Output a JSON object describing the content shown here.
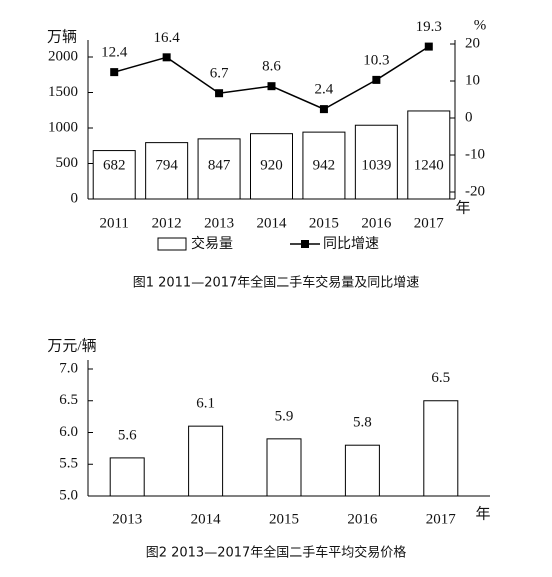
{
  "chart_data": [
    {
      "type": "combo",
      "title": "图1  2011—2017年全国二手车交易量及同比增速",
      "ylabel": "万辆",
      "y2label": "%",
      "xlabel": "年",
      "categories": [
        "2011",
        "2012",
        "2013",
        "2014",
        "2015",
        "2016",
        "2017"
      ],
      "series": [
        {
          "name": "交易量",
          "type": "bar",
          "color": "#ffffff",
          "values": [
            682,
            794,
            847,
            920,
            942,
            1039,
            1240
          ]
        },
        {
          "name": "同比增速",
          "type": "line",
          "axis": "y2",
          "color": "#000000",
          "values": [
            12.4,
            16.4,
            6.7,
            8.6,
            2.4,
            10.3,
            19.3
          ]
        }
      ],
      "ylim": [
        0,
        2000
      ],
      "yticks": [
        0,
        500,
        1000,
        1500,
        2000
      ],
      "y2lim": [
        -20,
        20
      ],
      "y2ticks": [
        -20,
        -10,
        0,
        10,
        20
      ],
      "legend": "bottom"
    },
    {
      "type": "bar",
      "title": "图2  2013—2017年全国二手车平均交易价格",
      "ylabel": "万元/辆",
      "xlabel": "年",
      "categories": [
        "2013",
        "2014",
        "2015",
        "2016",
        "2017"
      ],
      "values": [
        5.6,
        6.1,
        5.9,
        5.8,
        6.5
      ],
      "color": "#ffffff",
      "ylim": [
        5,
        7
      ],
      "yticks": [
        {
          "value": 5,
          "label": "5.0"
        },
        5.5,
        {
          "value": 6,
          "label": "6.0"
        },
        6.5,
        {
          "value": 7,
          "label": "7.0"
        }
      ]
    }
  ]
}
